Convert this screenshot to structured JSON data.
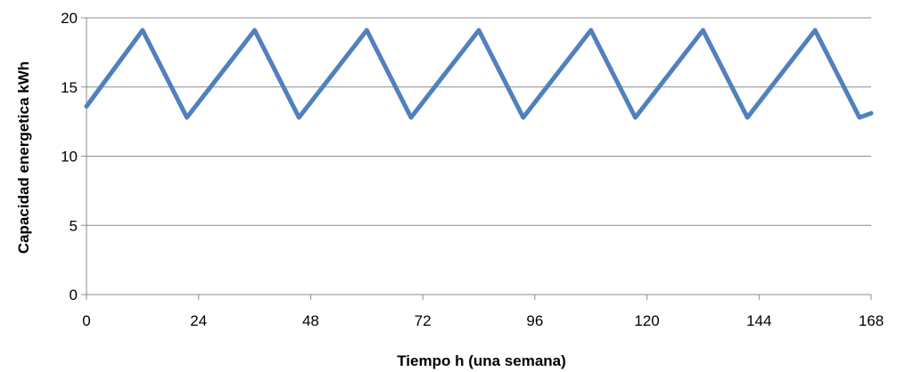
{
  "chart_data": {
    "type": "line",
    "title": "",
    "xlabel": "Tiempo h (una semana)",
    "ylabel": "Capacidad energetica kWh",
    "xlim": [
      0,
      168
    ],
    "ylim": [
      0,
      20
    ],
    "x_ticks": [
      "0",
      "24",
      "48",
      "72",
      "96",
      "120",
      "144",
      "168"
    ],
    "y_ticks": [
      "0",
      "5",
      "10",
      "15",
      "20"
    ],
    "grid": "horizontal",
    "legend": "none",
    "series_color": "#4f81bd",
    "series": [
      {
        "x": [
          0,
          12,
          21.5,
          36,
          45.5,
          60,
          69.5,
          84,
          93.5,
          108,
          117.5,
          132,
          141.5,
          156,
          165.5,
          168
        ],
        "y": [
          13.6,
          19.1,
          12.8,
          19.1,
          12.8,
          19.1,
          12.8,
          19.1,
          12.8,
          19.1,
          12.8,
          19.1,
          12.8,
          19.1,
          12.8,
          13.1
        ]
      }
    ]
  }
}
